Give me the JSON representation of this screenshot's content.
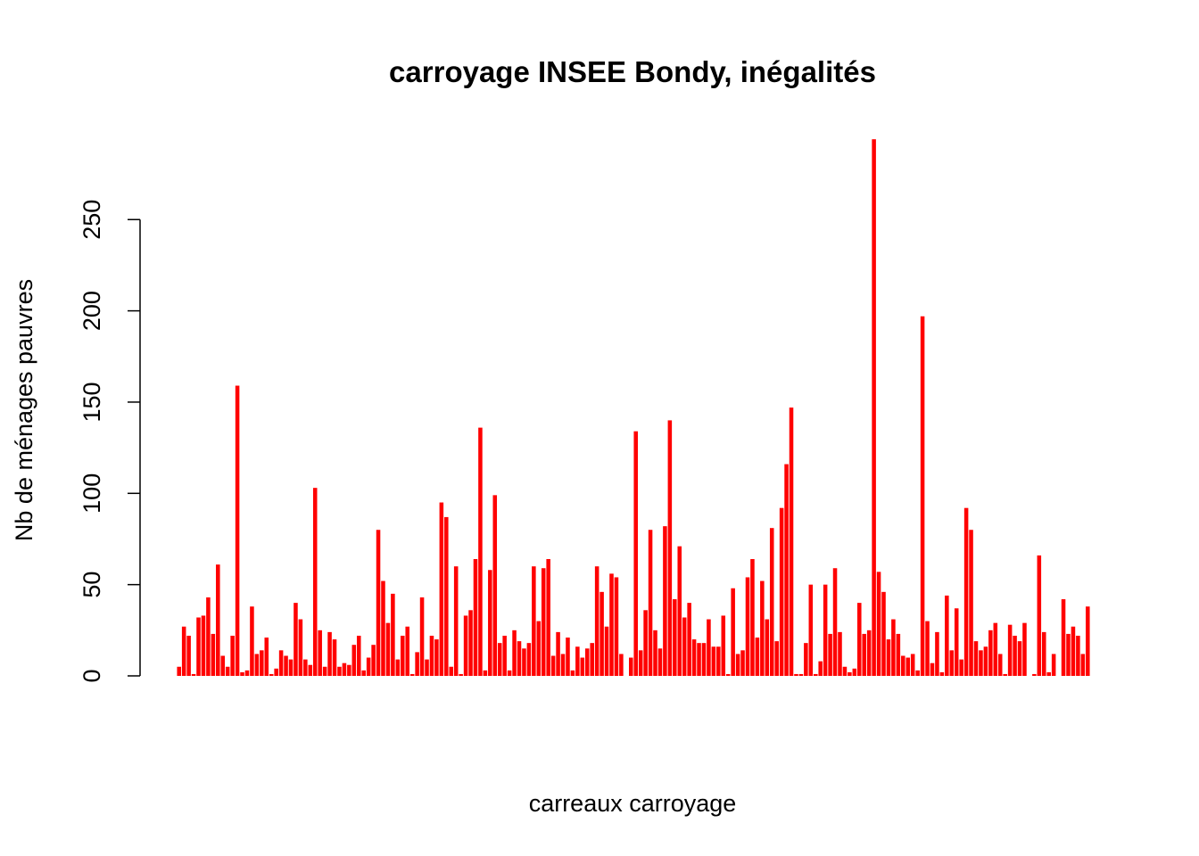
{
  "chart_data": {
    "type": "bar",
    "title": "carroyage INSEE Bondy, inégalités",
    "xlabel": "carreaux carroyage",
    "ylabel": "Nb de ménages pauvres",
    "ylim": [
      0,
      300
    ],
    "yticks": [
      0,
      50,
      100,
      150,
      200,
      250
    ],
    "ytick_labels": [
      "0",
      "50",
      "100",
      "150",
      "200",
      "250"
    ],
    "grid": false,
    "legend": "none",
    "bar_color": "#FF0000",
    "values": [
      5,
      27,
      22,
      1,
      32,
      33,
      43,
      23,
      61,
      11,
      5,
      22,
      159,
      2,
      3,
      38,
      12,
      14,
      21,
      1,
      4,
      14,
      11,
      9,
      40,
      31,
      9,
      6,
      103,
      25,
      5,
      24,
      20,
      5,
      7,
      6,
      17,
      22,
      3,
      10,
      17,
      80,
      52,
      29,
      45,
      9,
      22,
      27,
      1,
      13,
      43,
      9,
      22,
      20,
      95,
      87,
      5,
      60,
      1,
      33,
      36,
      64,
      136,
      3,
      58,
      99,
      18,
      22,
      3,
      25,
      19,
      15,
      18,
      60,
      30,
      59,
      64,
      11,
      24,
      12,
      21,
      3,
      16,
      10,
      15,
      18,
      60,
      46,
      27,
      56,
      54,
      12,
      0,
      10,
      134,
      14,
      36,
      80,
      25,
      15,
      82,
      140,
      42,
      71,
      32,
      40,
      20,
      18,
      18,
      31,
      16,
      16,
      33,
      1,
      48,
      12,
      14,
      54,
      64,
      21,
      52,
      31,
      81,
      19,
      92,
      116,
      147,
      1,
      1,
      18,
      50,
      1,
      8,
      50,
      23,
      59,
      24,
      5,
      2,
      4,
      40,
      23,
      25,
      294,
      57,
      46,
      20,
      31,
      23,
      11,
      10,
      12,
      3,
      197,
      30,
      7,
      24,
      2,
      44,
      14,
      37,
      9,
      92,
      80,
      19,
      14,
      16,
      25,
      29,
      12,
      1,
      28,
      22,
      19,
      29,
      0,
      1,
      66,
      24,
      2,
      12,
      0,
      42,
      23,
      27,
      22,
      12,
      38
    ]
  }
}
